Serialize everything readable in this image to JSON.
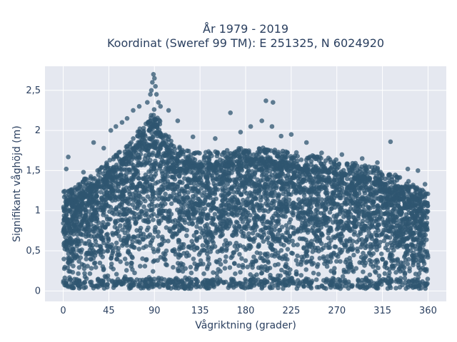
{
  "chart_data": {
    "type": "scatter",
    "title_line1": "År 1979 - 2019",
    "title_line2": "Koordinat (Sweref 99 TM): E 251325, N 6024920",
    "xlabel": "Vågriktning (grader)",
    "ylabel": "Signifikant våghöjd (m)",
    "xlim": [
      -18,
      378
    ],
    "ylim": [
      -0.13,
      2.8
    ],
    "x_ticks": [
      0,
      45,
      90,
      135,
      180,
      225,
      270,
      315,
      360
    ],
    "x_tick_labels": [
      "0",
      "45",
      "90",
      "135",
      "180",
      "225",
      "270",
      "315",
      "360"
    ],
    "y_ticks": [
      0,
      0.5,
      1,
      1.5,
      2,
      2.5
    ],
    "y_tick_labels": [
      "0",
      "0,5",
      "1",
      "1,5",
      "2",
      "2,5"
    ],
    "grid": true,
    "marker_color": "#2f5570",
    "plot_bg": "#e5e8f0",
    "envelope": {
      "x": [
        0,
        10,
        20,
        30,
        40,
        50,
        60,
        70,
        80,
        85,
        90,
        95,
        100,
        110,
        120,
        135,
        150,
        165,
        180,
        200,
        225,
        250,
        270,
        290,
        310,
        330,
        345,
        360
      ],
      "y_max": [
        1.1,
        1.15,
        1.25,
        1.35,
        1.45,
        1.55,
        1.65,
        1.8,
        1.95,
        2.05,
        2.15,
        2.0,
        1.85,
        1.7,
        1.62,
        1.6,
        1.6,
        1.62,
        1.65,
        1.65,
        1.6,
        1.55,
        1.5,
        1.45,
        1.4,
        1.3,
        1.2,
        1.1
      ]
    },
    "outliers": [
      {
        "x": 5,
        "y": 1.67
      },
      {
        "x": 3,
        "y": 1.52
      },
      {
        "x": 20,
        "y": 1.48
      },
      {
        "x": 30,
        "y": 1.85
      },
      {
        "x": 40,
        "y": 1.78
      },
      {
        "x": 47,
        "y": 2.0
      },
      {
        "x": 52,
        "y": 2.05
      },
      {
        "x": 58,
        "y": 2.1
      },
      {
        "x": 63,
        "y": 2.15
      },
      {
        "x": 69,
        "y": 2.25
      },
      {
        "x": 75,
        "y": 2.3
      },
      {
        "x": 83,
        "y": 2.35
      },
      {
        "x": 86,
        "y": 2.45
      },
      {
        "x": 87,
        "y": 2.5
      },
      {
        "x": 88,
        "y": 2.6
      },
      {
        "x": 89,
        "y": 2.7
      },
      {
        "x": 90,
        "y": 2.65
      },
      {
        "x": 91,
        "y": 2.55
      },
      {
        "x": 92,
        "y": 2.45
      },
      {
        "x": 94,
        "y": 2.35
      },
      {
        "x": 96,
        "y": 2.3
      },
      {
        "x": 104,
        "y": 2.25
      },
      {
        "x": 113,
        "y": 2.12
      },
      {
        "x": 128,
        "y": 1.92
      },
      {
        "x": 150,
        "y": 1.9
      },
      {
        "x": 165,
        "y": 2.22
      },
      {
        "x": 175,
        "y": 1.98
      },
      {
        "x": 185,
        "y": 2.05
      },
      {
        "x": 196,
        "y": 2.12
      },
      {
        "x": 200,
        "y": 2.37
      },
      {
        "x": 207,
        "y": 2.35
      },
      {
        "x": 206,
        "y": 2.05
      },
      {
        "x": 215,
        "y": 1.93
      },
      {
        "x": 225,
        "y": 1.95
      },
      {
        "x": 240,
        "y": 1.85
      },
      {
        "x": 255,
        "y": 1.72
      },
      {
        "x": 275,
        "y": 1.7
      },
      {
        "x": 295,
        "y": 1.65
      },
      {
        "x": 310,
        "y": 1.6
      },
      {
        "x": 323,
        "y": 1.86
      },
      {
        "x": 340,
        "y": 1.52
      },
      {
        "x": 350,
        "y": 1.5
      },
      {
        "x": 357,
        "y": 1.33
      },
      {
        "x": 345,
        "y": 1.3
      }
    ]
  }
}
